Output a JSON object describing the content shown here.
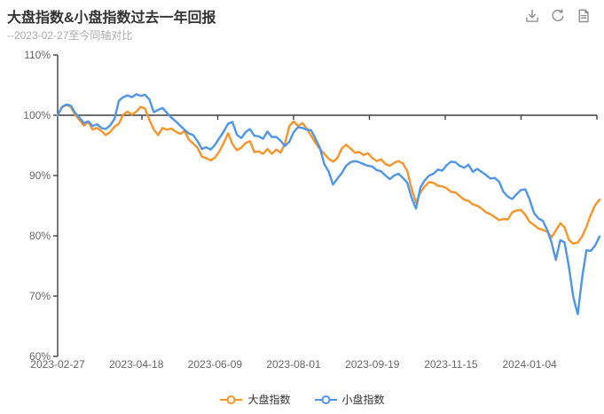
{
  "header": {
    "title": "大盘指数&小盘指数过去一年回报",
    "subtitle": "--2023-02-27至今同轴对比"
  },
  "toolbox": {
    "buttons": [
      "download",
      "refresh",
      "document"
    ]
  },
  "colors": {
    "background": "#FFFFFF",
    "title": "#333333",
    "subtitle": "#AAAAAA",
    "axis": "#3F3F3F",
    "tick_label": "#666666",
    "legend_text": "#333333",
    "toolbox_icon": "#8E9095",
    "large_cap_orange": "#F7942A",
    "small_cap_blue": "#4F96E8"
  },
  "legend": {
    "items": [
      "大盘指数",
      "小盘指数"
    ]
  },
  "chart_data": {
    "type": "line",
    "title": "大盘指数&小盘指数过去一年回报",
    "subtitle": "--2023-02-27至今同轴对比",
    "grid": false,
    "legend_position": "bottom",
    "ylim": [
      60,
      110
    ],
    "yticks": [
      110,
      100,
      90,
      80,
      70,
      60
    ],
    "ytick_suffix": "%",
    "x_axis_at_value": 100,
    "x_count": 125,
    "x_labels": [
      "2023-02-27",
      "2023-04-18",
      "2023-06-09",
      "2023-08-01",
      "2023-09-19",
      "2023-11-15",
      "2024-01-04"
    ],
    "x_label_indices": [
      0,
      18,
      36,
      54,
      72,
      90,
      108
    ],
    "series": [
      {
        "name": "大盘指数",
        "color": "#F7942A",
        "values": [
          100.0,
          101.3,
          101.7,
          101.4,
          100.1,
          99.2,
          98.3,
          98.9,
          97.6,
          97.9,
          97.4,
          96.7,
          97.2,
          98.1,
          98.6,
          100.1,
          100.6,
          100.1,
          100.6,
          101.4,
          101.1,
          99.2,
          97.6,
          96.7,
          97.9,
          97.6,
          97.8,
          97.3,
          96.9,
          97.4,
          96.0,
          95.3,
          94.6,
          93.1,
          92.9,
          92.5,
          93.0,
          94.0,
          95.4,
          97.0,
          95.2,
          94.2,
          94.6,
          95.4,
          95.7,
          93.9,
          94.0,
          93.6,
          94.4,
          93.6,
          94.3,
          93.8,
          95.3,
          98.2,
          99.0,
          98.2,
          98.7,
          97.8,
          96.6,
          95.4,
          94.4,
          93.6,
          92.8,
          92.3,
          92.9,
          94.5,
          95.1,
          94.5,
          93.8,
          93.9,
          93.4,
          93.7,
          92.9,
          92.4,
          92.7,
          91.9,
          91.6,
          92.1,
          92.4,
          92.0,
          90.7,
          87.8,
          85.5,
          87.2,
          88.2,
          88.9,
          88.8,
          88.3,
          88.2,
          87.9,
          87.3,
          87.2,
          86.6,
          86.0,
          85.8,
          85.2,
          85.0,
          84.5,
          83.9,
          83.6,
          83.1,
          82.6,
          82.8,
          82.7,
          83.9,
          84.2,
          84.3,
          83.5,
          82.3,
          81.8,
          81.2,
          81.0,
          80.7,
          79.7,
          80.9,
          82.1,
          81.4,
          79.3,
          78.7,
          78.9,
          79.9,
          81.5,
          83.5,
          85.1,
          86.0
        ]
      },
      {
        "name": "小盘指数",
        "color": "#4F96E8",
        "values": [
          100.0,
          101.4,
          101.8,
          101.6,
          100.4,
          99.6,
          98.7,
          99.0,
          98.2,
          98.5,
          97.9,
          97.7,
          98.3,
          99.4,
          102.4,
          103.0,
          103.3,
          103.0,
          103.5,
          103.2,
          103.4,
          102.6,
          100.5,
          100.9,
          101.2,
          100.4,
          99.6,
          99.0,
          98.3,
          97.6,
          97.0,
          96.7,
          95.7,
          94.4,
          94.7,
          94.3,
          95.1,
          96.2,
          97.3,
          98.6,
          98.9,
          96.8,
          96.2,
          97.2,
          97.7,
          96.6,
          96.5,
          96.1,
          97.3,
          96.4,
          96.4,
          95.8,
          94.9,
          95.6,
          97.2,
          98.0,
          97.9,
          97.6,
          97.5,
          96.1,
          94.6,
          91.9,
          90.7,
          88.5,
          89.5,
          90.4,
          91.6,
          92.2,
          92.4,
          92.2,
          91.9,
          91.6,
          91.5,
          90.9,
          90.7,
          90.0,
          89.4,
          90.0,
          90.3,
          89.6,
          88.8,
          86.3,
          84.5,
          88.0,
          89.2,
          90.0,
          90.3,
          91.0,
          90.8,
          91.7,
          92.3,
          92.2,
          91.6,
          91.3,
          91.8,
          90.6,
          91.1,
          90.6,
          90.1,
          89.5,
          89.6,
          89.0,
          87.3,
          86.5,
          86.1,
          86.9,
          87.6,
          87.7,
          86.0,
          83.8,
          82.9,
          82.5,
          81.0,
          78.9,
          76.0,
          79.3,
          78.9,
          74.8,
          69.8,
          67.0,
          73.0,
          77.6,
          77.5,
          78.4,
          79.9
        ]
      }
    ]
  }
}
